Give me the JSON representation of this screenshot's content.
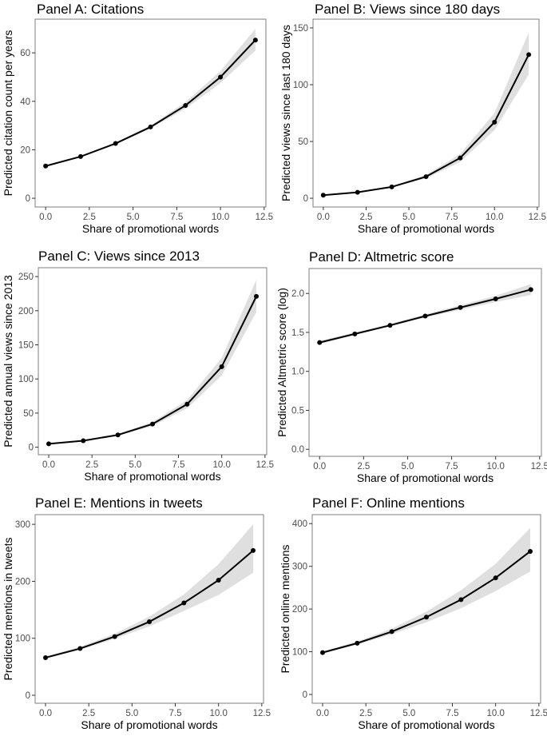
{
  "chart_data": [
    {
      "type": "line",
      "title": "Panel A: Citations",
      "xlabel": "Share of promotional words",
      "ylabel": "Predicted citation count per years",
      "x": [
        0,
        2,
        4,
        6,
        8,
        10,
        12
      ],
      "series": [
        {
          "name": "predicted",
          "values": [
            13.3,
            17.2,
            22.6,
            29.4,
            38.3,
            50,
            65.3
          ]
        }
      ],
      "ci_lower": [
        13,
        17,
        22.3,
        28.8,
        37,
        47.5,
        61
      ],
      "ci_upper": [
        13.6,
        17.5,
        23,
        30,
        39.7,
        52.5,
        70
      ],
      "xticks": [
        "0.0",
        "2.5",
        "5.0",
        "7.5",
        "10.0",
        "12.5"
      ],
      "yticks": [
        "0",
        "20",
        "40",
        "60"
      ],
      "ytick_values": [
        0,
        20,
        40,
        60
      ],
      "xlim": [
        -0.6,
        12.6
      ],
      "ylim": [
        -3.6,
        73.9
      ],
      "grid": false
    },
    {
      "type": "line",
      "title": "Panel B: Views since 180 days",
      "xlabel": "Share of promotional words",
      "ylabel": "Predicted views since last 180 days",
      "x": [
        0,
        2,
        4,
        6,
        8,
        10,
        12
      ],
      "series": [
        {
          "name": "predicted",
          "values": [
            2.7,
            5.2,
            10,
            19,
            35.5,
            67,
            126.5
          ]
        }
      ],
      "ci_lower": [
        2.5,
        5,
        9.5,
        17.5,
        32,
        60,
        109
      ],
      "ci_upper": [
        3,
        5.5,
        10.5,
        20.5,
        39,
        75,
        146
      ],
      "xticks": [
        "0.0",
        "2.5",
        "5.0",
        "7.5",
        "10.0",
        "12.5"
      ],
      "yticks": [
        "0",
        "50",
        "100",
        "150"
      ],
      "ytick_values": [
        0,
        50,
        100,
        150
      ],
      "xlim": [
        -0.6,
        12.6
      ],
      "ylim": [
        -7.7,
        157.7
      ],
      "grid": false
    },
    {
      "type": "line",
      "title": "Panel C: Views since 2013",
      "xlabel": "Share of promotional words",
      "ylabel": "Predicted annual views since 2013",
      "x": [
        0,
        2,
        4,
        6,
        8,
        10,
        12
      ],
      "series": [
        {
          "name": "predicted",
          "values": [
            5,
            9.5,
            18,
            34,
            63,
            118,
            221
          ]
        }
      ],
      "ci_lower": [
        4.5,
        9,
        17,
        31,
        57,
        105,
        198
      ],
      "ci_upper": [
        5.5,
        10,
        19,
        37,
        69,
        131,
        245
      ],
      "xticks": [
        "0.0",
        "2.5",
        "5.0",
        "7.5",
        "10.0",
        "12.5"
      ],
      "yticks": [
        "0",
        "50",
        "100",
        "150",
        "200",
        "250"
      ],
      "ytick_values": [
        0,
        50,
        100,
        150,
        200,
        250
      ],
      "xlim": [
        -0.6,
        12.6
      ],
      "ylim": [
        -11,
        263
      ],
      "grid": false
    },
    {
      "type": "line",
      "title": "Panel D: Altmetric score",
      "xlabel": "Share of promotional words",
      "ylabel": "Predicted Altmetric score (log)",
      "x": [
        0,
        2,
        4,
        6,
        8,
        10,
        12
      ],
      "series": [
        {
          "name": "predicted",
          "values": [
            1.37,
            1.48,
            1.59,
            1.71,
            1.82,
            1.93,
            2.05
          ]
        }
      ],
      "ci_lower": [
        1.35,
        1.47,
        1.58,
        1.69,
        1.79,
        1.89,
        1.98
      ],
      "ci_upper": [
        1.39,
        1.5,
        1.61,
        1.73,
        1.85,
        1.97,
        2.12
      ],
      "xticks": [
        "0.0",
        "2.5",
        "5.0",
        "7.5",
        "10.0",
        "12.5"
      ],
      "yticks": [
        "0.0",
        "0.5",
        "1.0",
        "1.5",
        "2.0"
      ],
      "ytick_values": [
        0,
        0.5,
        1.0,
        1.5,
        2.0
      ],
      "xlim": [
        -0.6,
        12.6
      ],
      "ylim": [
        -0.09,
        2.32
      ],
      "grid": false
    },
    {
      "type": "line",
      "title": "Panel E: Mentions in tweets",
      "xlabel": "Share of promotional words",
      "ylabel": "Predicted mentions in tweets",
      "x": [
        0,
        2,
        4,
        6,
        8,
        10,
        12
      ],
      "series": [
        {
          "name": "predicted",
          "values": [
            66,
            82,
            103,
            129,
            162,
            202,
            254
          ]
        }
      ],
      "ci_lower": [
        64,
        80,
        99,
        121,
        148,
        176,
        215
      ],
      "ci_upper": [
        68,
        85,
        108,
        138,
        177,
        230,
        300
      ],
      "xticks": [
        "0.0",
        "2.5",
        "5.0",
        "7.5",
        "10.0",
        "12.5"
      ],
      "yticks": [
        "0",
        "100",
        "200",
        "300"
      ],
      "ytick_values": [
        0,
        100,
        200,
        300
      ],
      "xlim": [
        -0.6,
        12.6
      ],
      "ylim": [
        -14,
        317
      ],
      "grid": false
    },
    {
      "type": "line",
      "title": "Panel F: Online mentions",
      "xlabel": "Share of promotional words",
      "ylabel": "Predicted online mentions",
      "x": [
        0,
        2,
        4,
        6,
        8,
        10,
        12
      ],
      "series": [
        {
          "name": "predicted",
          "values": [
            98,
            120,
            147,
            181,
            222,
            273,
            335
          ]
        }
      ],
      "ci_lower": [
        96,
        117,
        141,
        169,
        202,
        242,
        288
      ],
      "ci_upper": [
        101,
        124,
        154,
        194,
        244,
        306,
        390
      ],
      "xticks": [
        "0.0",
        "2.5",
        "5.0",
        "7.5",
        "10.0",
        "12.5"
      ],
      "yticks": [
        "0",
        "100",
        "200",
        "300",
        "400"
      ],
      "ytick_values": [
        0,
        100,
        200,
        300,
        400
      ],
      "xlim": [
        -0.6,
        12.6
      ],
      "ylim": [
        -20.6,
        421
      ],
      "grid": false
    }
  ],
  "colors": {
    "line": "#000000",
    "band": "#d9d9d9",
    "frame": "#7f7f7f",
    "tick_text": "#4d4d4d"
  }
}
